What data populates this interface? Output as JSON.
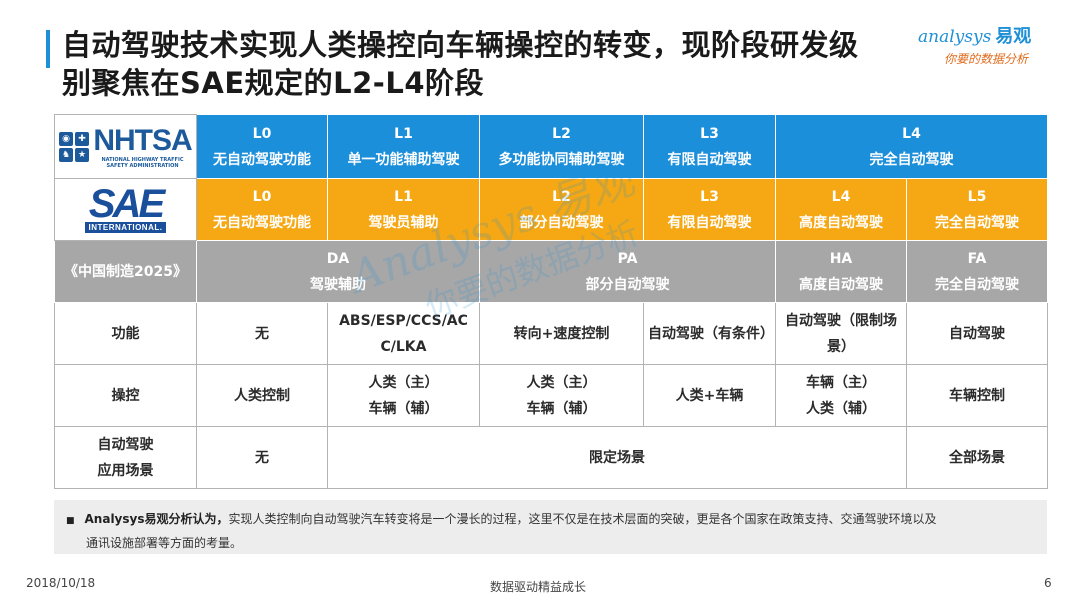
{
  "header": {
    "title_line1": "自动驾驶技术实现人类操控向车辆操控的转变，现阶段研发级",
    "title_line2": "别聚焦在SAE规定的L2-L4阶段"
  },
  "brand": {
    "name_en": "analysys",
    "name_cn": "易观",
    "slogan": "你要的数据分析",
    "color": "#1f8fd6",
    "slogan_color": "#e06a1b"
  },
  "watermark": {
    "line1": "Analysys 易观",
    "line2": "你要的数据分析"
  },
  "colors": {
    "nhtsa_row": "#1c8fdb",
    "sae_row": "#f5a814",
    "china_row": "#a7a7a7",
    "accent": "#1f8fd6"
  },
  "table": {
    "nhtsa": {
      "logo_text": "NHTSA",
      "logo_subtext": "NATIONAL HIGHWAY TRAFFIC SAFETY ADMINISTRATION",
      "cells": [
        {
          "level": "L0",
          "desc": "无自动驾驶功能"
        },
        {
          "level": "L1",
          "desc": "单一功能辅助驾驶"
        },
        {
          "level": "L2",
          "desc": "多功能协同辅助驾驶"
        },
        {
          "level": "L3",
          "desc": "有限自动驾驶"
        },
        {
          "level": "L4",
          "desc": "完全自动驾驶"
        }
      ]
    },
    "sae": {
      "logo_text": "SAE",
      "logo_subtext": "INTERNATIONAL.",
      "cells": [
        {
          "level": "L0",
          "desc": "无自动驾驶功能"
        },
        {
          "level": "L1",
          "desc": "驾驶员辅助"
        },
        {
          "level": "L2",
          "desc": "部分自动驾驶"
        },
        {
          "level": "L3",
          "desc": "有限自动驾驶"
        },
        {
          "level": "L4",
          "desc": "高度自动驾驶"
        },
        {
          "level": "L5",
          "desc": "完全自动驾驶"
        }
      ]
    },
    "china": {
      "label": "《中国制造2025》",
      "cells": [
        {
          "level": "DA",
          "desc": "驾驶辅助"
        },
        {
          "level": "PA",
          "desc": "部分自动驾驶"
        },
        {
          "level": "HA",
          "desc": "高度自动驾驶"
        },
        {
          "level": "FA",
          "desc": "完全自动驾驶"
        }
      ]
    },
    "function": {
      "label": "功能",
      "cells": [
        "无",
        "ABS/ESP/CCS/AC C/LKA",
        "转向+速度控制",
        "自动驾驶（有条件）",
        "自动驾驶（限制场景）",
        "自动驾驶"
      ]
    },
    "control": {
      "label": "操控",
      "cells": [
        {
          "line1": "人类控制",
          "line2": ""
        },
        {
          "line1": "人类（主）",
          "line2": "车辆（辅）"
        },
        {
          "line1": "人类（主）",
          "line2": "车辆（辅）"
        },
        {
          "line1": "人类+车辆",
          "line2": ""
        },
        {
          "line1": "车辆（主）",
          "line2": "人类（辅）"
        },
        {
          "line1": "车辆控制",
          "line2": ""
        }
      ]
    },
    "scenario": {
      "label_line1": "自动驾驶",
      "label_line2": "应用场景",
      "cells": [
        "无",
        "限定场景",
        "全部场景"
      ]
    }
  },
  "note": {
    "lead": "Analysys易观分析认为，",
    "text_line1": "实现人类控制向自动驾驶汽车转变将是一个漫长的过程，这里不仅是在技术层面的突破，更是各个国家在政策支持、交通驾驶环境以及",
    "text_line2": "通讯设施部署等方面的考量。"
  },
  "footer": {
    "date": "2018/10/18",
    "center": "数据驱动精益成长",
    "page": "6"
  }
}
